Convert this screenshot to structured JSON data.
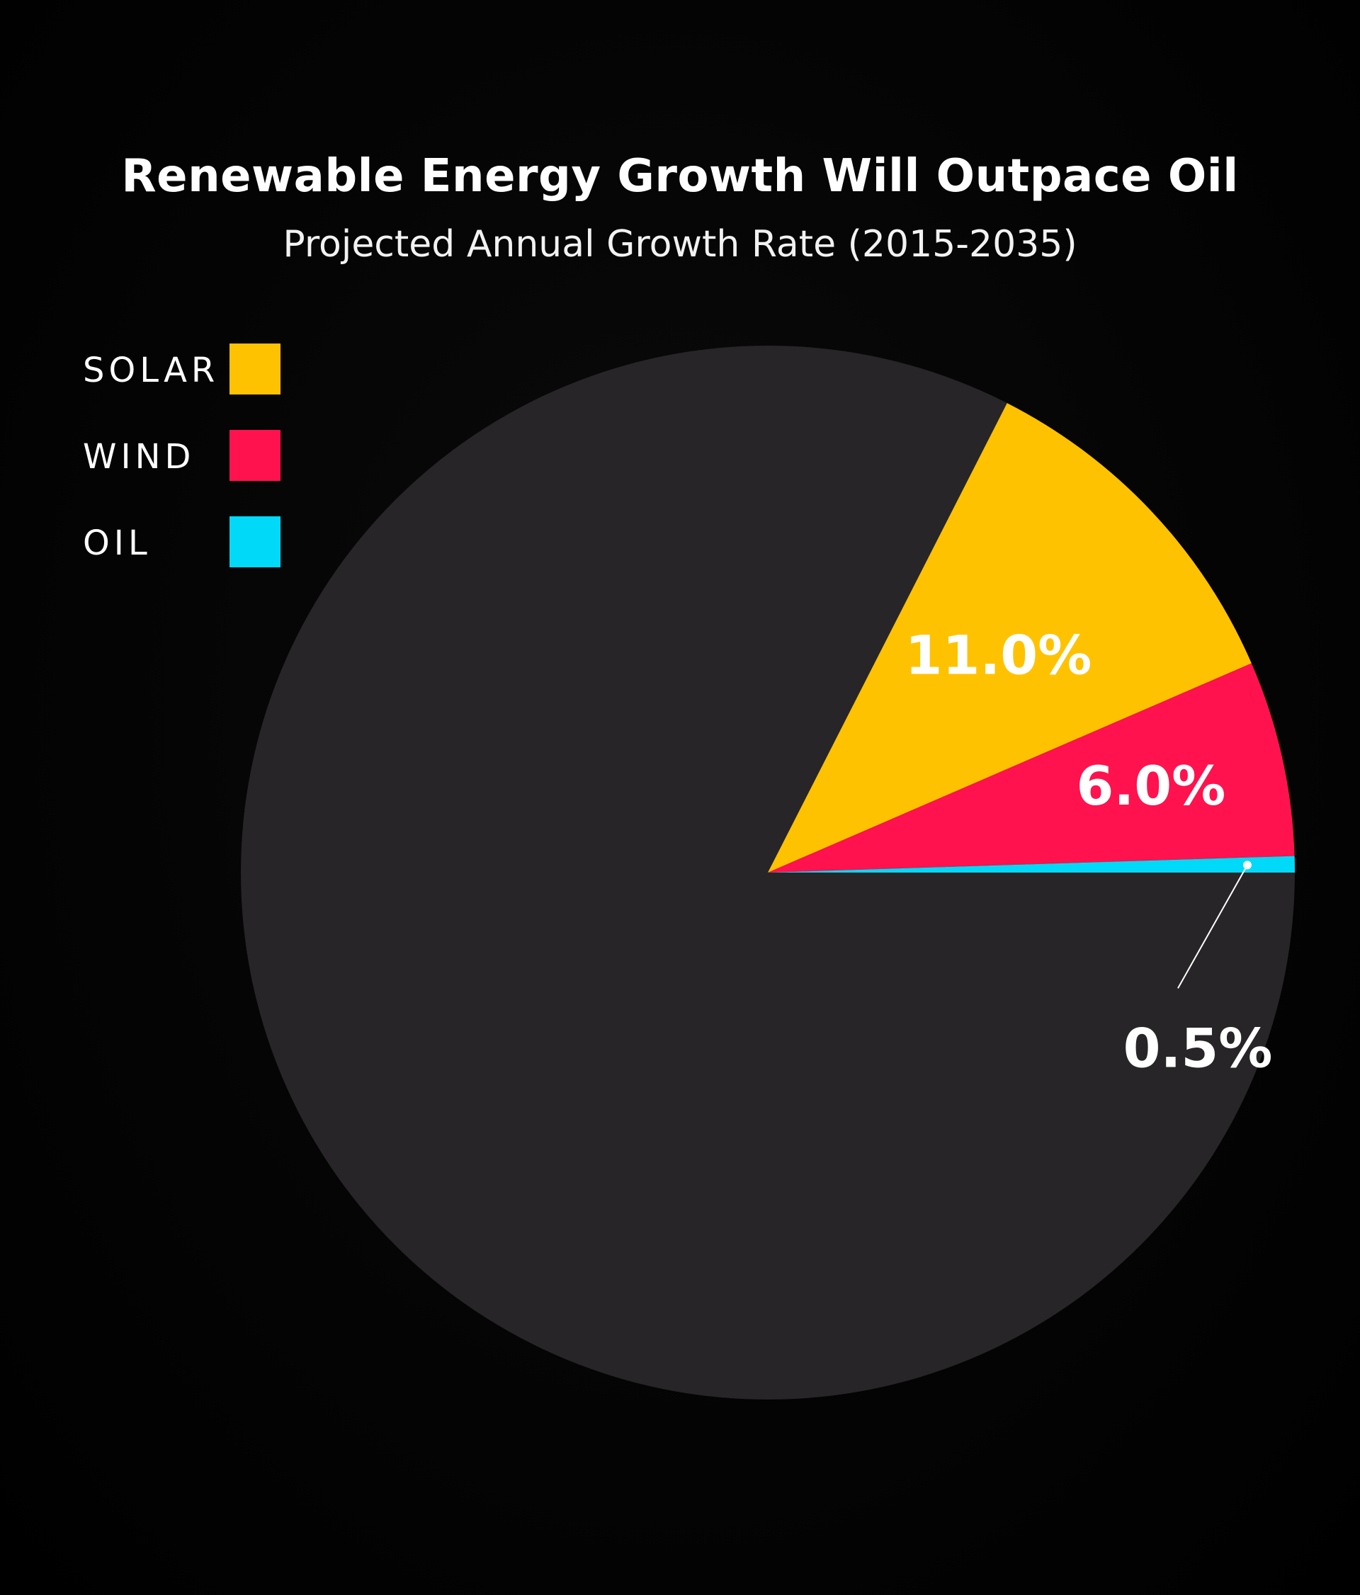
{
  "chart_data": {
    "type": "pie",
    "title": "Renewable Energy Growth Will Outpace Oil",
    "subtitle": "Projected Annual Growth Rate (2015-2035)",
    "slices": [
      {
        "name": "SOLAR",
        "value": 11.0,
        "label": "11.0%",
        "color": "#FFC200"
      },
      {
        "name": "WIND",
        "value": 6.0,
        "label": "6.0%",
        "color": "#FF124D"
      },
      {
        "name": "OIL",
        "value": 0.5,
        "label": "0.5%",
        "color": "#00D9F7"
      }
    ],
    "background_color": "#272527",
    "total_scale": 100
  }
}
